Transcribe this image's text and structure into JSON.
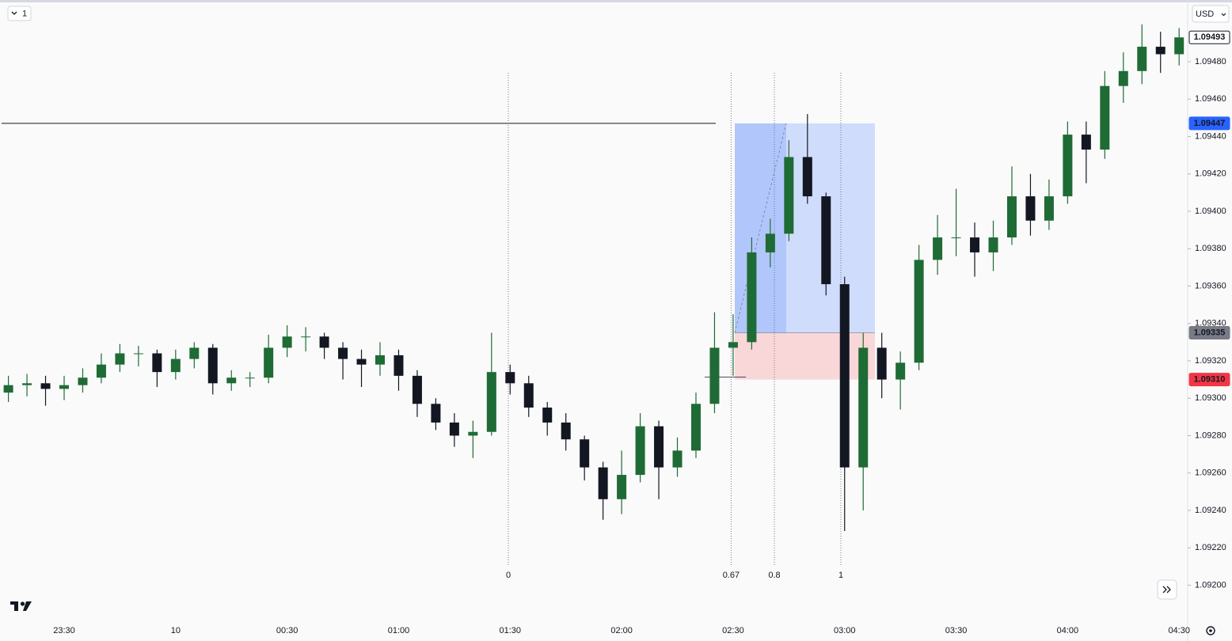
{
  "chart_data": {
    "type": "candlestick",
    "interval": "1",
    "currency": "USD",
    "categories": [
      null,
      null,
      null,
      "23:30",
      null,
      null,
      null,
      null,
      null,
      "10",
      null,
      null,
      null,
      null,
      null,
      "00:30",
      null,
      null,
      null,
      null,
      null,
      "01:00",
      null,
      null,
      null,
      null,
      null,
      "01:30",
      null,
      null,
      null,
      null,
      null,
      "02:00",
      null,
      null,
      null,
      null,
      null,
      "02:30",
      null,
      null,
      null,
      null,
      null,
      "03:00",
      null,
      null,
      null,
      null,
      null,
      "03:30",
      null,
      null,
      null,
      null,
      null,
      "04:00",
      null,
      null,
      null,
      null,
      null,
      "04:30"
    ],
    "candles": [
      [
        1.09303,
        1.09312,
        1.09298,
        1.09307
      ],
      [
        1.09307,
        1.09313,
        1.09301,
        1.09308
      ],
      [
        1.09308,
        1.09312,
        1.09296,
        1.09305
      ],
      [
        1.09305,
        1.09312,
        1.09299,
        1.09307
      ],
      [
        1.09307,
        1.09316,
        1.09303,
        1.09311
      ],
      [
        1.09311,
        1.09324,
        1.09308,
        1.09318
      ],
      [
        1.09318,
        1.09329,
        1.09314,
        1.09324
      ],
      [
        1.09324,
        1.09328,
        1.09317,
        1.09324
      ],
      [
        1.09324,
        1.09326,
        1.09306,
        1.09314
      ],
      [
        1.09314,
        1.09326,
        1.0931,
        1.09321
      ],
      [
        1.09321,
        1.0933,
        1.09316,
        1.09327
      ],
      [
        1.09327,
        1.09329,
        1.09302,
        1.09308
      ],
      [
        1.09308,
        1.09315,
        1.09304,
        1.09311
      ],
      [
        1.09311,
        1.09314,
        1.09306,
        1.09311
      ],
      [
        1.09311,
        1.09334,
        1.09308,
        1.09327
      ],
      [
        1.09327,
        1.09339,
        1.09322,
        1.09333
      ],
      [
        1.09333,
        1.09338,
        1.09325,
        1.09333
      ],
      [
        1.09333,
        1.09335,
        1.09321,
        1.09327
      ],
      [
        1.09327,
        1.0933,
        1.0931,
        1.09321
      ],
      [
        1.09321,
        1.09326,
        1.09306,
        1.09318
      ],
      [
        1.09318,
        1.0933,
        1.09312,
        1.09323
      ],
      [
        1.09323,
        1.09326,
        1.09304,
        1.09312
      ],
      [
        1.09312,
        1.09315,
        1.0929,
        1.09297
      ],
      [
        1.09297,
        1.093,
        1.09283,
        1.09287
      ],
      [
        1.09287,
        1.09292,
        1.09274,
        1.0928
      ],
      [
        1.0928,
        1.09288,
        1.09268,
        1.09282
      ],
      [
        1.09282,
        1.09335,
        1.0928,
        1.09314
      ],
      [
        1.09314,
        1.09318,
        1.09302,
        1.09308
      ],
      [
        1.09308,
        1.09312,
        1.0929,
        1.09295
      ],
      [
        1.09295,
        1.09298,
        1.0928,
        1.09287
      ],
      [
        1.09287,
        1.09292,
        1.09272,
        1.09278
      ],
      [
        1.09278,
        1.0928,
        1.09256,
        1.09263
      ],
      [
        1.09263,
        1.09266,
        1.09235,
        1.09246
      ],
      [
        1.09246,
        1.09272,
        1.09238,
        1.09259
      ],
      [
        1.09259,
        1.09292,
        1.09255,
        1.09285
      ],
      [
        1.09285,
        1.09288,
        1.09246,
        1.09263
      ],
      [
        1.09263,
        1.09279,
        1.09258,
        1.09272
      ],
      [
        1.09272,
        1.09303,
        1.09268,
        1.09297
      ],
      [
        1.09297,
        1.09346,
        1.09292,
        1.09327
      ],
      [
        1.09327,
        1.09345,
        1.09312,
        1.0933
      ],
      [
        1.0933,
        1.09386,
        1.09326,
        1.09378
      ],
      [
        1.09378,
        1.09396,
        1.0937,
        1.09388
      ],
      [
        1.09388,
        1.09438,
        1.09384,
        1.09429
      ],
      [
        1.09429,
        1.09452,
        1.09404,
        1.09408
      ],
      [
        1.09408,
        1.0941,
        1.09355,
        1.09361
      ],
      [
        1.09361,
        1.09365,
        1.09229,
        1.09263
      ],
      [
        1.09263,
        1.09335,
        1.0924,
        1.09327
      ],
      [
        1.09327,
        1.09335,
        1.093,
        1.0931
      ],
      [
        1.0931,
        1.09325,
        1.09294,
        1.09319
      ],
      [
        1.09319,
        1.09382,
        1.09315,
        1.09374
      ],
      [
        1.09374,
        1.09398,
        1.09366,
        1.09386
      ],
      [
        1.09386,
        1.09412,
        1.09376,
        1.09386
      ],
      [
        1.09386,
        1.09394,
        1.09365,
        1.09378
      ],
      [
        1.09378,
        1.09395,
        1.09368,
        1.09386
      ],
      [
        1.09386,
        1.09424,
        1.09382,
        1.09408
      ],
      [
        1.09408,
        1.0942,
        1.09387,
        1.09395
      ],
      [
        1.09395,
        1.09417,
        1.0939,
        1.09408
      ],
      [
        1.09408,
        1.09448,
        1.09404,
        1.09441
      ],
      [
        1.09441,
        1.09448,
        1.09415,
        1.09433
      ],
      [
        1.09433,
        1.09475,
        1.09428,
        1.09467
      ],
      [
        1.09467,
        1.09485,
        1.09458,
        1.09475
      ],
      [
        1.09475,
        1.095,
        1.09468,
        1.09488
      ],
      [
        1.09488,
        1.09496,
        1.09474,
        1.09484
      ],
      [
        1.09484,
        1.09498,
        1.09478,
        1.09493
      ]
    ],
    "up_color": "#1f6b35",
    "down_color": "#131722",
    "ylim": [
      1.09182,
      1.09513
    ],
    "yticks": [
      {
        "value": 1.092,
        "label": "1.09200"
      },
      {
        "value": 1.0922,
        "label": "1.09220"
      },
      {
        "value": 1.0924,
        "label": "1.09240"
      },
      {
        "value": 1.0926,
        "label": "1.09260"
      },
      {
        "value": 1.0928,
        "label": "1.09280"
      },
      {
        "value": 1.093,
        "label": "1.09300"
      },
      {
        "value": 1.0932,
        "label": "1.09320"
      },
      {
        "value": 1.0934,
        "label": "1.09340"
      },
      {
        "value": 1.0936,
        "label": "1.09360"
      },
      {
        "value": 1.0938,
        "label": "1.09380"
      },
      {
        "value": 1.094,
        "label": "1.09400"
      },
      {
        "value": 1.0942,
        "label": "1.09420"
      },
      {
        "value": 1.0944,
        "label": "1.09440"
      },
      {
        "value": 1.0946,
        "label": "1.09460"
      },
      {
        "value": 1.0948,
        "label": "1.09480"
      }
    ],
    "level_line": 1.09447,
    "position": {
      "target": {
        "value": 1.09447,
        "label": "1.09447",
        "color": "#2962ff"
      },
      "entry": {
        "value": 1.09335,
        "label": "1.09335",
        "color": "#787b86"
      },
      "stop": {
        "value": 1.0931,
        "label": "1.09310",
        "color": "#f23645"
      }
    },
    "last_price": 1.09493,
    "fib_time_levels": [
      0,
      0.67,
      0.8,
      1
    ]
  }
}
